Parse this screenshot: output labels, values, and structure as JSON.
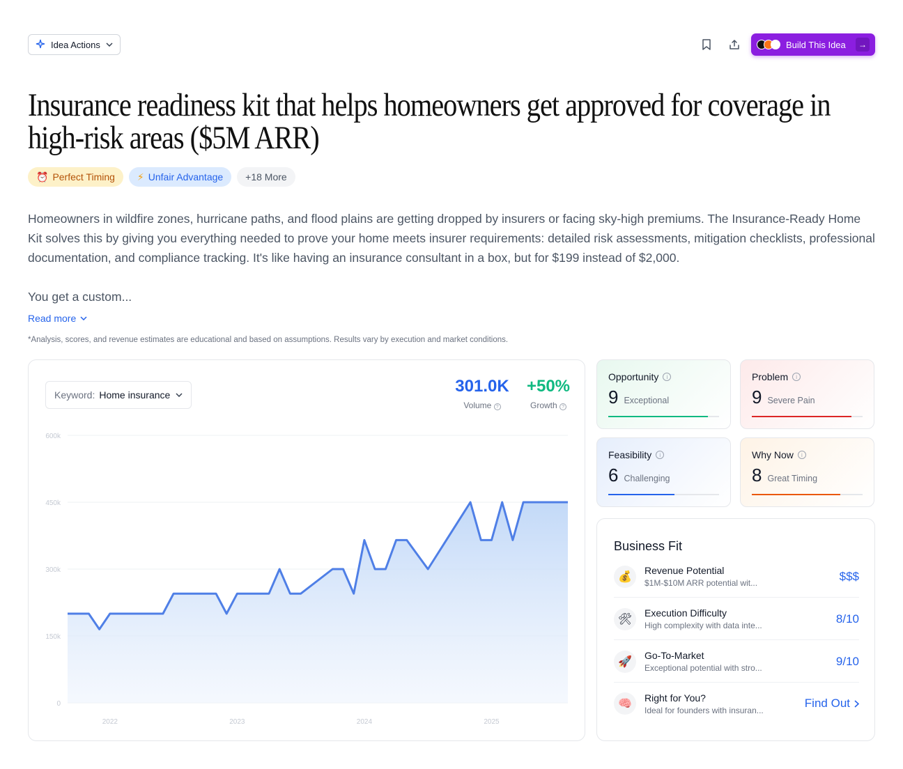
{
  "header": {
    "actions_label": "Idea Actions",
    "build_label": "Build This Idea"
  },
  "title": "Insurance readiness kit that helps homeowners get approved for coverage in high-risk areas ($5M ARR)",
  "tags": [
    {
      "icon": "alarm-clock-icon",
      "label": "Perfect Timing"
    },
    {
      "icon": "lightning-icon",
      "label": "Unfair Advantage"
    },
    {
      "label": "+18 More"
    }
  ],
  "description": [
    "Homeowners in wildfire zones, hurricane paths, and flood plains are getting dropped by insurers or facing sky-high premiums. The Insurance-Ready Home Kit solves this by giving you everything needed to prove your home meets insurer requirements: detailed risk assessments, mitigation checklists, professional documentation, and compliance tracking. It's like having an insurance consultant in a box, but for $199 instead of $2,000.",
    "You get a custom..."
  ],
  "read_more": "Read more",
  "disclaimer": "*Analysis, scores, and revenue estimates are educational and based on assumptions. Results vary by execution and market conditions.",
  "keyword": {
    "label": "Keyword:",
    "value": "Home insurance"
  },
  "stats": {
    "volume": {
      "value": "301.0K",
      "label": "Volume",
      "color": "#2563eb"
    },
    "growth": {
      "value": "+50%",
      "label": "Growth",
      "color": "#10b981"
    }
  },
  "chart_data": {
    "type": "area",
    "ylim": [
      0,
      600
    ],
    "y_ticks": [
      "0",
      "150k",
      "300k",
      "450k",
      "600k"
    ],
    "x_ticks": [
      "2022",
      "2023",
      "2024",
      "2025"
    ],
    "x_tick_positions": [
      0.5,
      2.0,
      3.5,
      5.0
    ],
    "x_range": [
      0,
      5.9
    ],
    "x": [
      0,
      0.25,
      0.375,
      0.5,
      1.125,
      1.25,
      1.75,
      1.875,
      2.0,
      2.375,
      2.5,
      2.625,
      2.75,
      3.125,
      3.25,
      3.375,
      3.5,
      3.625,
      3.75,
      3.875,
      4.0,
      4.25,
      4.75,
      4.875,
      5.0,
      5.125,
      5.25,
      5.375,
      5.9
    ],
    "values": [
      200,
      200,
      165,
      200,
      200,
      245,
      245,
      200,
      245,
      245,
      300,
      245,
      245,
      300,
      300,
      245,
      365,
      300,
      300,
      365,
      365,
      300,
      450,
      365,
      365,
      450,
      365,
      450,
      450
    ],
    "line_color": "#4f7fe6"
  },
  "scores": [
    {
      "label": "Opportunity",
      "value": "9",
      "status": "Exceptional",
      "fraction": 0.9,
      "color": "#10b981"
    },
    {
      "label": "Problem",
      "value": "9",
      "status": "Severe Pain",
      "fraction": 0.9,
      "color": "#dc2626"
    },
    {
      "label": "Feasibility",
      "value": "6",
      "status": "Challenging",
      "fraction": 0.6,
      "color": "#2563eb"
    },
    {
      "label": "Why Now",
      "value": "8",
      "status": "Great Timing",
      "fraction": 0.8,
      "color": "#ea580c"
    }
  ],
  "business_fit": {
    "title": "Business Fit",
    "rows": [
      {
        "icon": "money-bag-icon",
        "emoji": "💰",
        "title": "Revenue Potential",
        "desc": "$1M-$10M ARR potential wit...",
        "value": "$$$"
      },
      {
        "icon": "tools-icon",
        "emoji": "🛠",
        "title": "Execution Difficulty",
        "desc": "High complexity with data inte...",
        "value": "8/10"
      },
      {
        "icon": "rocket-icon",
        "emoji": "🚀",
        "title": "Go-To-Market",
        "desc": "Exceptional potential with stro...",
        "value": "9/10"
      },
      {
        "icon": "brain-icon",
        "emoji": "🧠",
        "title": "Right for You?",
        "desc": "Ideal for founders with insuran...",
        "value": "Find Out"
      }
    ]
  }
}
